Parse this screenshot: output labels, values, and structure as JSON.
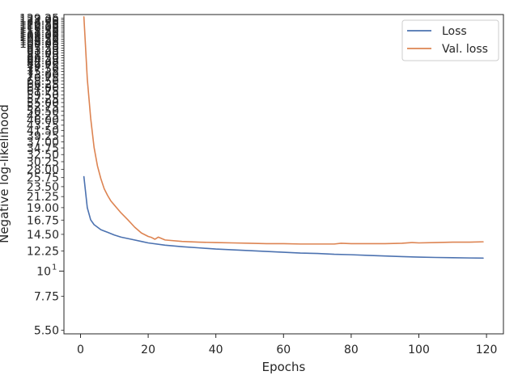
{
  "chart_data": {
    "type": "line",
    "title": "",
    "xlabel": "Epochs",
    "ylabel": "Negative log-likelihood",
    "xlim": [
      -4.9,
      125
    ],
    "ylim": [
      5.3,
      134
    ],
    "yscale": "log",
    "grid": false,
    "legend_position": "top-right",
    "x_ticks": [
      0,
      20,
      40,
      60,
      80,
      100,
      120
    ],
    "x_tick_labels": [
      "0",
      "20",
      "40",
      "60",
      "80",
      "100",
      "120"
    ],
    "y_major_tick": {
      "value": 10,
      "label_base": "10",
      "label_exp": "1"
    },
    "y_minor_ticks": [
      5.5,
      7.75,
      12.25,
      14.5,
      16.75,
      19.0,
      21.25,
      23.5,
      25.75,
      28.0,
      30.25,
      32.5,
      34.75,
      37.0,
      39.25,
      41.5,
      43.75,
      46.0,
      48.25,
      50.5,
      52.75,
      55.0,
      57.25,
      59.5,
      61.75,
      64.0,
      66.25,
      68.5,
      70.75,
      73.0,
      75.25,
      77.5,
      79.75,
      82.0,
      84.25,
      86.5,
      88.75,
      91.0,
      93.25,
      95.5,
      97.75,
      100.0,
      102.25,
      104.5,
      106.75,
      109.0,
      111.25,
      113.5,
      115.75,
      118.0,
      120.25,
      122.5,
      124.75,
      127.0,
      129.25
    ],
    "y_minor_tick_labels": [
      "5.50",
      "7.75",
      "12.25",
      "14.50",
      "16.75",
      "19.00",
      "21.25",
      "23.50",
      "25.75",
      "28.00",
      "30.25",
      "32.50",
      "34.75",
      "37.00",
      "39.25",
      "41.50",
      "43.75",
      "46.00",
      "48.25",
      "50.50",
      "52.75",
      "55.00",
      "57.25",
      "59.50",
      "61.75",
      "64.00",
      "66.25",
      "68.50",
      "70.75",
      "73.00",
      "75.25",
      "77.50",
      "79.75",
      "82.00",
      "84.25",
      "86.50",
      "88.75",
      "91.00",
      "93.25",
      "95.50",
      "97.75",
      "100.00",
      "102.25",
      "104.50",
      "106.75",
      "109.00",
      "111.25",
      "113.50",
      "115.75",
      "118.00",
      "120.25",
      "122.50",
      "124.75",
      "127.00",
      "129.25"
    ],
    "series": [
      {
        "name": "Loss",
        "color": "#4c72b0",
        "x": [
          1,
          2,
          3,
          4,
          5,
          6,
          8,
          10,
          12,
          15,
          18,
          20,
          25,
          30,
          35,
          40,
          45,
          50,
          55,
          60,
          65,
          70,
          75,
          80,
          85,
          90,
          95,
          100,
          105,
          110,
          115,
          119
        ],
        "y": [
          26.0,
          19.0,
          16.8,
          16.0,
          15.6,
          15.2,
          14.8,
          14.4,
          14.1,
          13.8,
          13.5,
          13.3,
          13.0,
          12.8,
          12.65,
          12.5,
          12.4,
          12.3,
          12.2,
          12.1,
          12.0,
          11.95,
          11.85,
          11.8,
          11.72,
          11.65,
          11.58,
          11.52,
          11.48,
          11.45,
          11.42,
          11.4
        ]
      },
      {
        "name": "Val. loss",
        "color": "#dd8452",
        "x": [
          1,
          2,
          3,
          4,
          5,
          6,
          7,
          8,
          9,
          10,
          12,
          14,
          16,
          18,
          20,
          21,
          22,
          23,
          25,
          30,
          35,
          40,
          45,
          50,
          55,
          60,
          65,
          70,
          75,
          77,
          80,
          85,
          90,
          95,
          98,
          100,
          105,
          110,
          115,
          119
        ],
        "y": [
          131.0,
          70.0,
          47.0,
          35.0,
          29.0,
          25.5,
          23.0,
          21.5,
          20.3,
          19.5,
          18.0,
          16.8,
          15.6,
          14.7,
          14.2,
          14.05,
          13.8,
          14.1,
          13.7,
          13.5,
          13.4,
          13.35,
          13.3,
          13.25,
          13.2,
          13.2,
          13.15,
          13.15,
          13.15,
          13.25,
          13.2,
          13.2,
          13.2,
          13.25,
          13.35,
          13.3,
          13.35,
          13.4,
          13.4,
          13.45
        ]
      }
    ]
  }
}
